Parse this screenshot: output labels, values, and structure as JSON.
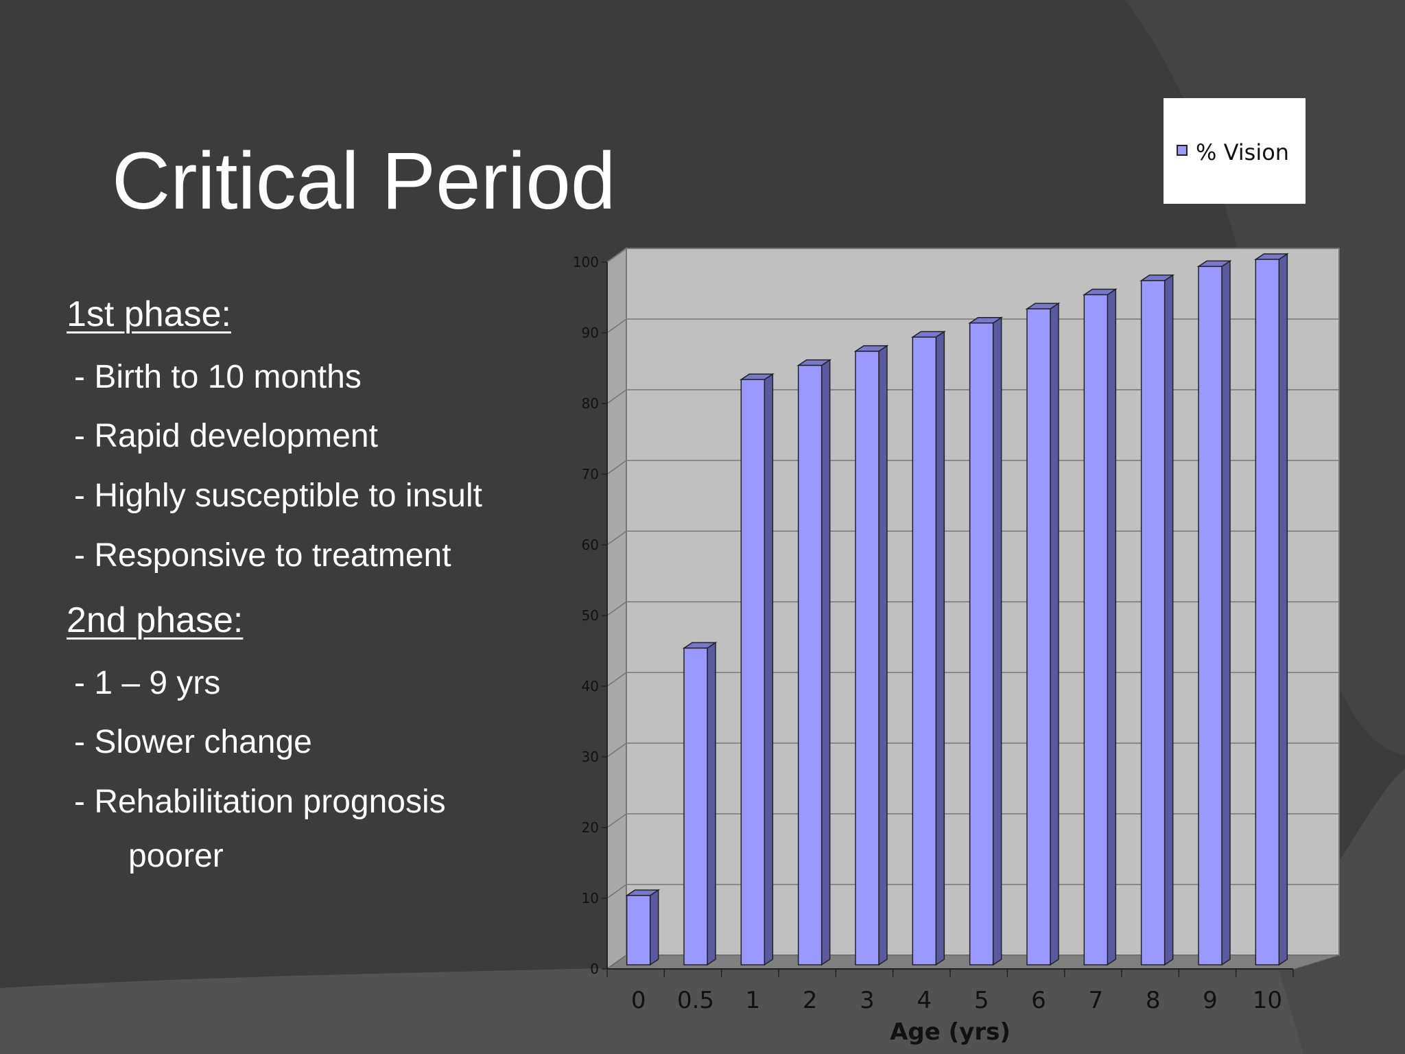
{
  "slide": {
    "title": "Critical Period",
    "phase1": {
      "heading": "1st phase:",
      "items": [
        "- Birth to 10 months",
        "- Rapid development",
        "- Highly susceptible to insult",
        "- Responsive to treatment"
      ]
    },
    "phase2": {
      "heading": "2nd phase:",
      "items": [
        "- 1 – 9 yrs",
        "- Slower change",
        "- Rehabilitation prognosis"
      ],
      "continuation": "poorer"
    }
  },
  "colors": {
    "background": "#3c3c3c",
    "bar_front": "#9999ff",
    "bar_side": "#5a5aa0",
    "bar_top": "#7777cc",
    "plot_wall": "#c0c0c0",
    "plot_floor": "#808080"
  },
  "chart_data": {
    "type": "bar",
    "title": "",
    "categories": [
      "0",
      "0.5",
      "1",
      "2",
      "3",
      "4",
      "5",
      "6",
      "7",
      "8",
      "9",
      "10"
    ],
    "series": [
      {
        "name": "% Vision",
        "values": [
          10,
          45,
          83,
          85,
          87,
          89,
          91,
          93,
          95,
          97,
          99,
          100
        ]
      }
    ],
    "xlabel": "Age (yrs)",
    "ylabel": "",
    "ylim": [
      0,
      100
    ],
    "yticks": [
      "0",
      "10",
      "20",
      "30",
      "40",
      "50",
      "60",
      "70",
      "80",
      "90",
      "100"
    ],
    "grid": true,
    "legend": {
      "position": "top-right",
      "entries": [
        "% Vision"
      ]
    }
  }
}
